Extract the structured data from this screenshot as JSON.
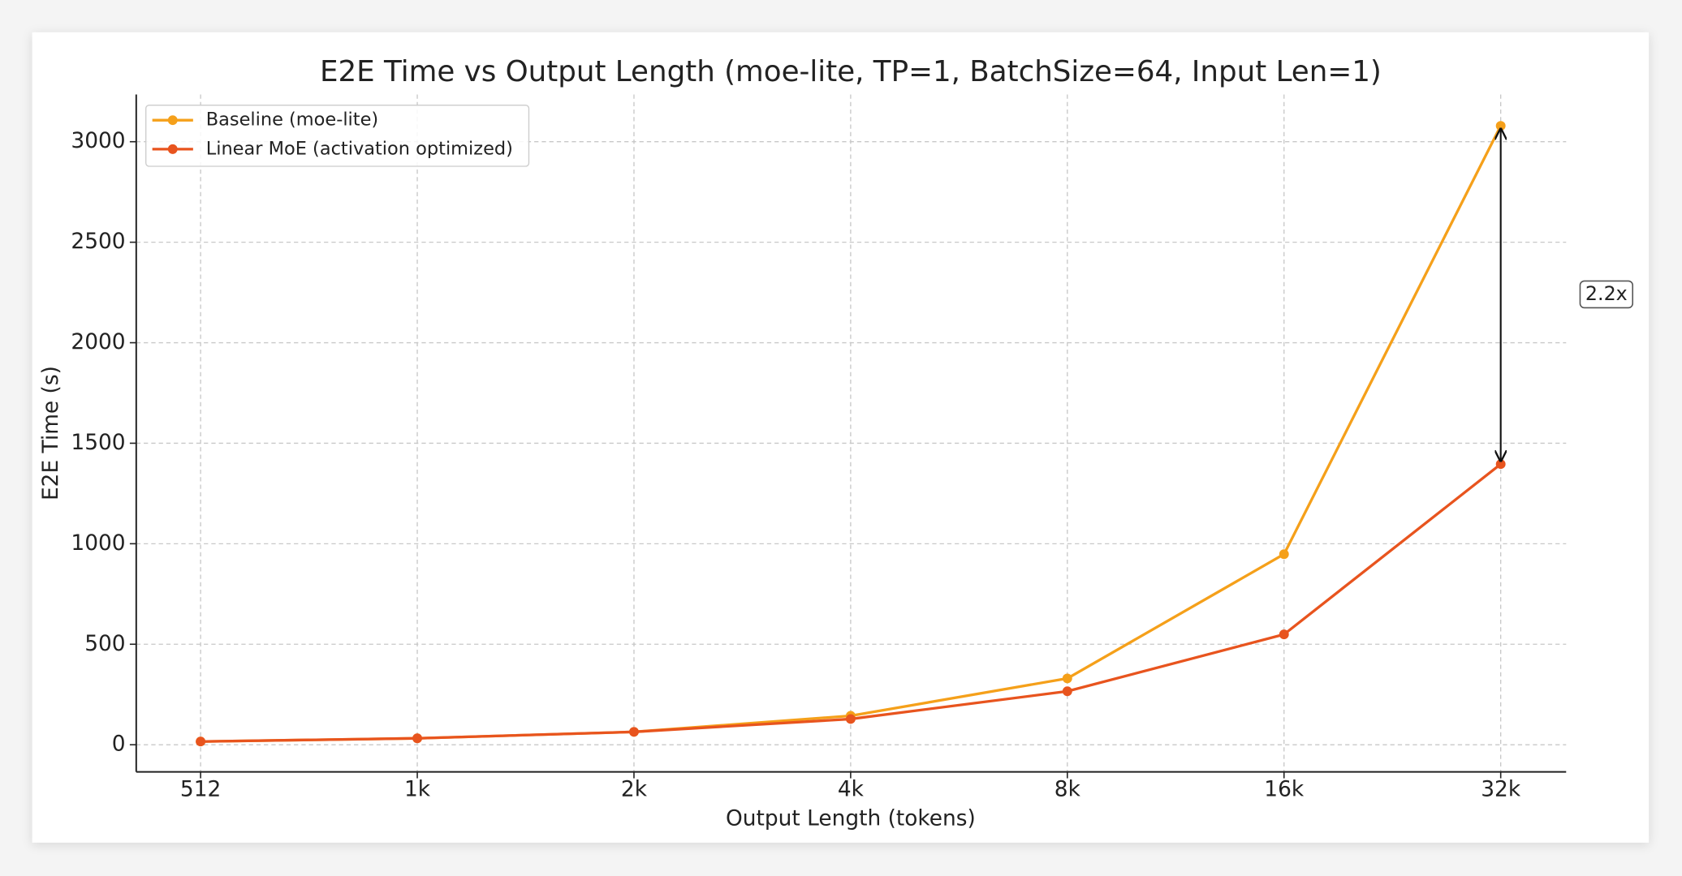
{
  "chart_data": {
    "type": "line",
    "title": "E2E Time vs Output Length (moe-lite, TP=1, BatchSize=64, Input Len=1)",
    "x_label": "Output Length (tokens)",
    "y_label": "E2E Time (s)",
    "categories": [
      "512",
      "1k",
      "2k",
      "4k",
      "8k",
      "16k",
      "32k"
    ],
    "series": [
      {
        "name": "Baseline (moe-lite)",
        "color": "#f5a01a",
        "values": [
          16,
          32,
          64,
          144,
          330,
          948,
          3079
        ]
      },
      {
        "name": "Linear MoE (activation optimized)",
        "color": "#e8541e",
        "values": [
          16,
          32,
          64,
          128,
          266,
          549,
          1396
        ]
      }
    ],
    "ylim": [
      -135,
      3235
    ],
    "yticks": [
      0,
      500,
      1000,
      1500,
      2000,
      2500,
      3000
    ],
    "grid": true,
    "legend": "upper-left",
    "annotation": "2.2x"
  }
}
